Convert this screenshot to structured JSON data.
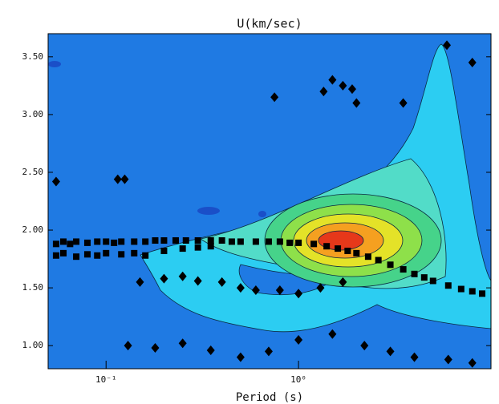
{
  "chart_data": {
    "type": "scatter",
    "title": "U(km/sec)",
    "x_label": "Period (s)",
    "x_log": true,
    "xlim": [
      0.05,
      10
    ],
    "ylim": [
      0.8,
      3.7
    ],
    "xticks": [
      {
        "value": 0.1,
        "label": "10⁻¹"
      },
      {
        "value": 1,
        "label": "10⁰"
      }
    ],
    "yticks": [
      {
        "value": 1.0,
        "label": "1.00"
      },
      {
        "value": 1.5,
        "label": "1.50"
      },
      {
        "value": 2.0,
        "label": "2.00"
      },
      {
        "value": 2.5,
        "label": "2.50"
      },
      {
        "value": 3.0,
        "label": "3.00"
      },
      {
        "value": 3.5,
        "label": "3.50"
      }
    ],
    "series": [
      {
        "color": "#000000",
        "marker": "square",
        "x": [
          0.055,
          0.06,
          0.065,
          0.07,
          0.08,
          0.09,
          0.1,
          0.11,
          0.12,
          0.14,
          0.16,
          0.18,
          0.2,
          0.23,
          0.26,
          0.3,
          0.35,
          0.4,
          0.45,
          0.5,
          0.6,
          0.7,
          0.8,
          0.9,
          1.0,
          1.2,
          1.4,
          1.6,
          1.8,
          2.0,
          2.3,
          2.6,
          3.0,
          3.5,
          4.0,
          4.5,
          5.0,
          6.0,
          7.0,
          8.0,
          9.0
        ],
        "values": [
          1.88,
          1.9,
          1.88,
          1.9,
          1.89,
          1.9,
          1.9,
          1.89,
          1.9,
          1.9,
          1.9,
          1.91,
          1.91,
          1.91,
          1.91,
          1.91,
          1.91,
          1.91,
          1.9,
          1.9,
          1.9,
          1.9,
          1.9,
          1.89,
          1.89,
          1.88,
          1.86,
          1.84,
          1.82,
          1.8,
          1.77,
          1.74,
          1.7,
          1.66,
          1.62,
          1.59,
          1.56,
          1.52,
          1.49,
          1.47,
          1.45
        ]
      },
      {
        "color": "#000000",
        "marker": "square",
        "x": [
          0.055,
          0.06,
          0.07,
          0.08,
          0.09,
          0.1,
          0.12,
          0.14,
          0.16,
          0.2,
          0.25,
          0.3,
          0.35
        ],
        "values": [
          1.78,
          1.8,
          1.77,
          1.79,
          1.78,
          1.8,
          1.79,
          1.8,
          1.78,
          1.82,
          1.84,
          1.85,
          1.86
        ]
      },
      {
        "color": "#000000",
        "marker": "diamond",
        "x": [
          0.055,
          0.115,
          0.125,
          0.75,
          1.35,
          1.5,
          1.7,
          1.9,
          2.0,
          3.5,
          5.9,
          8.0,
          0.15,
          0.2,
          0.25,
          0.3,
          0.4,
          0.5,
          0.6,
          0.8,
          1.0,
          1.3,
          1.7,
          0.13,
          0.18,
          0.25,
          0.35,
          0.5,
          0.7,
          1.0,
          1.5,
          2.2,
          3.0,
          4.0,
          6.0,
          8.0
        ],
        "values": [
          2.42,
          2.44,
          2.44,
          3.15,
          3.2,
          3.3,
          3.25,
          3.22,
          3.1,
          3.1,
          3.6,
          3.45,
          1.55,
          1.58,
          1.6,
          1.56,
          1.55,
          1.5,
          1.48,
          1.48,
          1.45,
          1.5,
          1.55,
          1.0,
          0.98,
          1.02,
          0.96,
          0.9,
          0.95,
          1.05,
          1.1,
          1.0,
          0.95,
          0.9,
          0.88,
          0.85
        ]
      }
    ]
  }
}
